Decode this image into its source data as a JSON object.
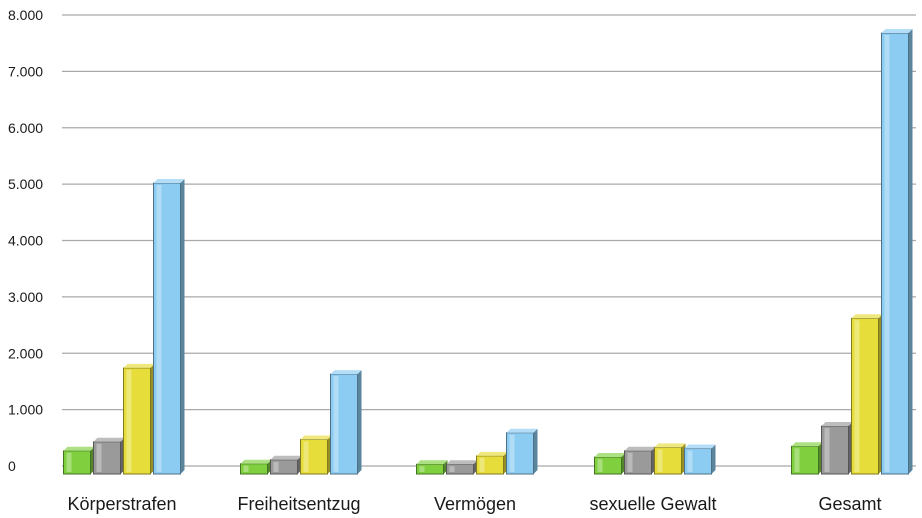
{
  "chart_data": {
    "type": "bar",
    "title": "",
    "xlabel": "",
    "ylabel": "",
    "categories": [
      "Körperstrafen",
      "Freiheitsentzug",
      "Vermögen",
      "sexuelle Gewalt",
      "Gesamt"
    ],
    "series": [
      {
        "color": "#7fcf3f",
        "values": [
          270,
          40,
          30,
          160,
          350
        ]
      },
      {
        "color": "#9a9a9a",
        "values": [
          430,
          110,
          30,
          270,
          710
        ]
      },
      {
        "color": "#e6dc3a",
        "values": [
          1740,
          470,
          180,
          330,
          2620
        ]
      },
      {
        "color": "#8ccbf2",
        "values": [
          5020,
          1630,
          590,
          310,
          7680
        ]
      }
    ],
    "ylim": [
      0,
      8000
    ],
    "yticks": [
      0,
      1000,
      2000,
      3000,
      4000,
      5000,
      6000,
      7000,
      8000
    ],
    "ytick_labels": [
      "0",
      "1.000",
      "2.000",
      "3.000",
      "4.000",
      "5.000",
      "6.000",
      "7.000",
      "8.000"
    ],
    "grid": true,
    "legend": "none"
  }
}
